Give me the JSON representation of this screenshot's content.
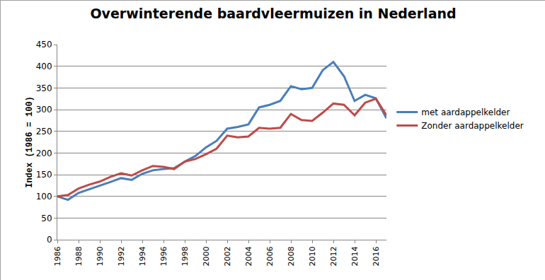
{
  "chart_data": {
    "type": "line",
    "title": "Overwinterende baardvleermuizen in Nederland",
    "y_label": "Index (1986 = 100)",
    "x": [
      1986,
      1987,
      1988,
      1989,
      1990,
      1991,
      1992,
      1993,
      1994,
      1995,
      1996,
      1997,
      1998,
      1999,
      2000,
      2001,
      2002,
      2003,
      2004,
      2005,
      2006,
      2007,
      2008,
      2009,
      2010,
      2011,
      2012,
      2013,
      2014,
      2015,
      2016,
      2017
    ],
    "series": [
      {
        "name": "met aardappelkelder",
        "color": "#4a7ebb",
        "values": [
          100,
          92,
          108,
          116,
          124,
          133,
          142,
          138,
          152,
          160,
          163,
          165,
          180,
          193,
          213,
          228,
          256,
          260,
          266,
          305,
          311,
          320,
          354,
          347,
          350,
          391,
          410,
          377,
          320,
          334,
          326,
          280
        ]
      },
      {
        "name": "Zonder aardappelkelder",
        "color": "#be4b48",
        "values": [
          100,
          103,
          118,
          127,
          134,
          145,
          153,
          148,
          160,
          170,
          168,
          163,
          180,
          186,
          197,
          210,
          240,
          236,
          238,
          258,
          256,
          258,
          290,
          276,
          274,
          293,
          314,
          311,
          287,
          316,
          325,
          287
        ]
      }
    ],
    "xlim": [
      1986,
      2017
    ],
    "xticks": [
      1986,
      1988,
      1990,
      1992,
      1994,
      1996,
      1998,
      2000,
      2002,
      2004,
      2006,
      2008,
      2010,
      2012,
      2014,
      2016
    ],
    "ylim": [
      0,
      450
    ],
    "yticks": [
      0,
      50,
      100,
      150,
      200,
      250,
      300,
      350,
      400,
      450
    ],
    "grid": true,
    "legend": "right"
  }
}
